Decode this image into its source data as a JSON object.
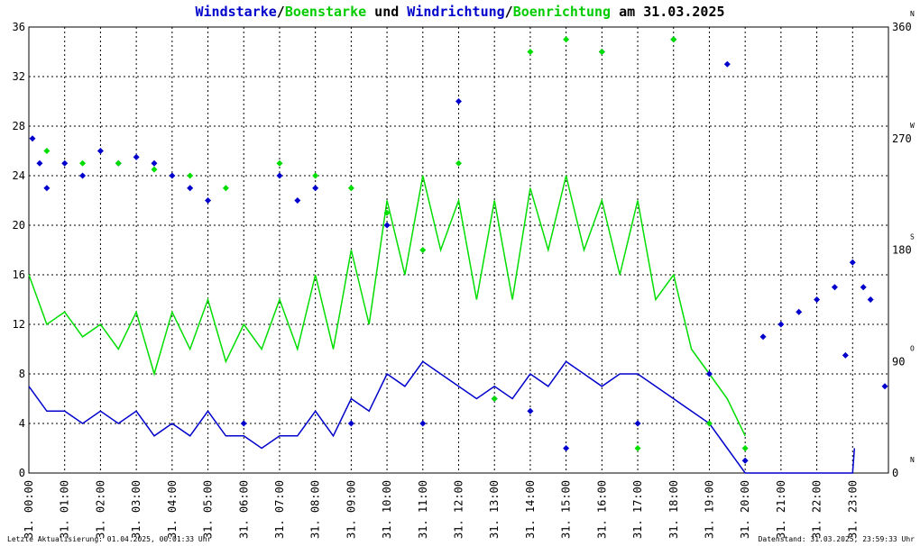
{
  "title": {
    "parts": [
      {
        "text": "Windstarke",
        "color": "#0000cc"
      },
      {
        "text": "/",
        "color": "#000000"
      },
      {
        "text": "Boenstarke",
        "color": "#00cc00"
      },
      {
        "text": " und ",
        "color": "#000000"
      },
      {
        "text": "Windrichtung",
        "color": "#0000cc"
      },
      {
        "text": "/",
        "color": "#000000"
      },
      {
        "text": "Boenrichtung",
        "color": "#00cc00"
      },
      {
        "text": " am 31.03.2025",
        "color": "#000000"
      }
    ]
  },
  "footer": {
    "left": "Letzte Aktualisierung: 01.04.2025, 00:01:33 Uhr",
    "right": "Datenstand: 31.03.2025, 23:59:33 Uhr"
  },
  "chart_data": {
    "type": "line",
    "xlabel": "",
    "x_ticks": [
      "31. 00:00",
      "31. 01:00",
      "31. 02:00",
      "31. 03:00",
      "31. 04:00",
      "31. 05:00",
      "31. 06:00",
      "31. 07:00",
      "31. 08:00",
      "31. 09:00",
      "31. 10:00",
      "31. 11:00",
      "31. 12:00",
      "31. 13:00",
      "31. 14:00",
      "31. 15:00",
      "31. 16:00",
      "31. 17:00",
      "31. 18:00",
      "31. 19:00",
      "31. 20:00",
      "31. 21:00",
      "31. 22:00",
      "31. 23:00"
    ],
    "xlim_hours": [
      0,
      24
    ],
    "y_left": {
      "ticks": [
        0,
        4,
        8,
        12,
        16,
        20,
        24,
        28,
        32,
        36
      ],
      "ylim": [
        0,
        36
      ]
    },
    "y_right": {
      "ticks": [
        0,
        90,
        180,
        270,
        360
      ],
      "compass": [
        {
          "deg": 0,
          "label": "N"
        },
        {
          "deg": 90,
          "label": "O"
        },
        {
          "deg": 180,
          "label": "S"
        },
        {
          "deg": 270,
          "label": "W"
        },
        {
          "deg": 360,
          "label": "N"
        }
      ],
      "ylim": [
        0,
        360
      ]
    },
    "grid": true,
    "legend": "none",
    "colors": {
      "wind": "#0000cc",
      "gust": "#00dd00"
    },
    "series": [
      {
        "name": "Windstarke",
        "kind": "line",
        "color": "#0000cc",
        "x": [
          0,
          0.5,
          1,
          1.5,
          2,
          2.5,
          3,
          3.5,
          4,
          4.5,
          5,
          5.5,
          6,
          6.5,
          7,
          7.5,
          8,
          8.5,
          9,
          9.5,
          10,
          10.5,
          11,
          11.5,
          12,
          12.5,
          13,
          13.5,
          14,
          14.5,
          15,
          15.5,
          16,
          16.5,
          17,
          17.5,
          18,
          18.5,
          19,
          19.5,
          20,
          23,
          23.05
        ],
        "y": [
          7,
          5,
          5,
          4,
          5,
          4,
          5,
          3,
          4,
          3,
          5,
          3,
          3,
          2,
          3,
          3,
          5,
          3,
          6,
          5,
          8,
          7,
          9,
          8,
          7,
          6,
          7,
          6,
          8,
          7,
          9,
          8,
          7,
          8,
          8,
          7,
          6,
          5,
          4,
          2,
          0,
          0,
          2
        ]
      },
      {
        "name": "Boenstarke",
        "kind": "line",
        "color": "#00dd00",
        "x": [
          0,
          0.5,
          1,
          1.5,
          2,
          2.5,
          3,
          3.5,
          4,
          4.5,
          5,
          5.5,
          6,
          6.5,
          7,
          7.5,
          8,
          8.5,
          9,
          9.5,
          10,
          10.5,
          11,
          11.5,
          12,
          12.5,
          13,
          13.5,
          14,
          14.5,
          15,
          15.5,
          16,
          16.5,
          17,
          17.5,
          18,
          18.5,
          19,
          19.5,
          20
        ],
        "y": [
          16,
          12,
          13,
          11,
          12,
          10,
          13,
          8,
          13,
          10,
          14,
          9,
          12,
          10,
          14,
          10,
          16,
          10,
          18,
          12,
          22,
          16,
          24,
          18,
          22,
          14,
          22,
          14,
          23,
          18,
          24,
          18,
          22,
          16,
          22,
          14,
          16,
          10,
          8,
          6,
          3
        ]
      },
      {
        "name": "Windrichtung",
        "kind": "scatter",
        "color": "#0000cc",
        "x": [
          0.1,
          0.3,
          0.5,
          1,
          1.5,
          2,
          2.5,
          3,
          3.5,
          4,
          4.5,
          5,
          6,
          7,
          7.5,
          8,
          9,
          10,
          11,
          12,
          13,
          14,
          15,
          16,
          17,
          18,
          19,
          19.5,
          20,
          20.5,
          21,
          21.5,
          22,
          22.5,
          22.8,
          23,
          23.3,
          23.5,
          23.9
        ],
        "y": [
          270,
          250,
          230,
          250,
          240,
          260,
          250,
          255,
          250,
          240,
          230,
          220,
          40,
          240,
          220,
          230,
          40,
          200,
          40,
          300,
          60,
          50,
          20,
          340,
          40,
          350,
          80,
          330,
          10,
          110,
          120,
          130,
          140,
          150,
          95,
          170,
          150,
          140,
          70
        ]
      },
      {
        "name": "Boenrichtung",
        "kind": "scatter",
        "color": "#00dd00",
        "x": [
          0.5,
          1.5,
          2.5,
          3.5,
          4.5,
          5.5,
          7,
          8,
          9,
          10,
          11,
          12,
          13,
          14,
          15,
          16,
          17,
          18,
          19,
          20
        ],
        "y": [
          260,
          250,
          250,
          245,
          240,
          230,
          250,
          240,
          230,
          210,
          180,
          250,
          60,
          340,
          350,
          340,
          20,
          350,
          40,
          20
        ]
      }
    ]
  }
}
